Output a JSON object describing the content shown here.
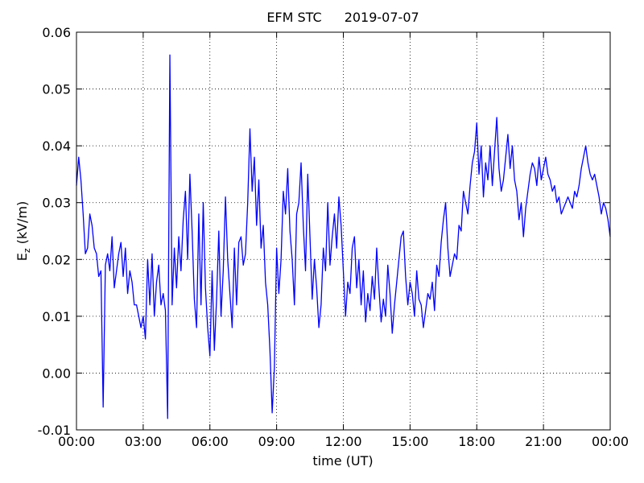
{
  "chart_data": {
    "type": "line",
    "title": "EFM STC",
    "date": "2019-07-07",
    "xlabel": "time (UT)",
    "ylabel": {
      "symbol": "E",
      "subscript": "z",
      "unit": "(kV/m)"
    },
    "xlim": [
      0,
      24
    ],
    "xticks": [
      {
        "value": 0,
        "label": "00:00"
      },
      {
        "value": 3,
        "label": "03:00"
      },
      {
        "value": 6,
        "label": "06:00"
      },
      {
        "value": 9,
        "label": "09:00"
      },
      {
        "value": 12,
        "label": "12:00"
      },
      {
        "value": 15,
        "label": "15:00"
      },
      {
        "value": 18,
        "label": "18:00"
      },
      {
        "value": 21,
        "label": "21:00"
      },
      {
        "value": 24,
        "label": "00:00"
      }
    ],
    "ylim": [
      -0.01,
      0.06
    ],
    "yticks": [
      -0.01,
      {
        "value": 0,
        "label": "0.00"
      },
      0.01,
      0.02,
      0.03,
      0.04,
      0.05,
      0.06
    ],
    "grid": true,
    "x": [
      0,
      0.1,
      0.2,
      0.3,
      0.4,
      0.5,
      0.6,
      0.7,
      0.8,
      0.9,
      1,
      1.1,
      1.2,
      1.3,
      1.4,
      1.5,
      1.6,
      1.7,
      1.8,
      1.9,
      2,
      2.1,
      2.2,
      2.3,
      2.4,
      2.5,
      2.6,
      2.7,
      2.8,
      2.9,
      3,
      3.1,
      3.2,
      3.3,
      3.4,
      3.5,
      3.6,
      3.7,
      3.8,
      3.9,
      4,
      4.1,
      4.2,
      4.3,
      4.4,
      4.5,
      4.6,
      4.7,
      4.8,
      4.9,
      5,
      5.1,
      5.2,
      5.3,
      5.4,
      5.5,
      5.6,
      5.7,
      5.8,
      5.9,
      6,
      6.1,
      6.2,
      6.3,
      6.4,
      6.5,
      6.6,
      6.7,
      6.8,
      6.9,
      7,
      7.1,
      7.2,
      7.3,
      7.4,
      7.5,
      7.6,
      7.7,
      7.8,
      7.9,
      8,
      8.1,
      8.2,
      8.3,
      8.4,
      8.5,
      8.6,
      8.7,
      8.8,
      8.9,
      9,
      9.1,
      9.2,
      9.3,
      9.4,
      9.5,
      9.6,
      9.7,
      9.8,
      9.9,
      10,
      10.1,
      10.2,
      10.3,
      10.4,
      10.5,
      10.6,
      10.7,
      10.8,
      10.9,
      11,
      11.1,
      11.2,
      11.3,
      11.4,
      11.5,
      11.6,
      11.7,
      11.8,
      11.9,
      12,
      12.1,
      12.2,
      12.3,
      12.4,
      12.5,
      12.6,
      12.7,
      12.8,
      12.9,
      13,
      13.1,
      13.2,
      13.3,
      13.4,
      13.5,
      13.6,
      13.7,
      13.8,
      13.9,
      14,
      14.1,
      14.2,
      14.3,
      14.4,
      14.5,
      14.6,
      14.7,
      14.8,
      14.9,
      15,
      15.1,
      15.2,
      15.3,
      15.4,
      15.5,
      15.6,
      15.7,
      15.8,
      15.9,
      16,
      16.1,
      16.2,
      16.3,
      16.4,
      16.5,
      16.6,
      16.7,
      16.8,
      16.9,
      17,
      17.1,
      17.2,
      17.3,
      17.4,
      17.5,
      17.6,
      17.7,
      17.8,
      17.9,
      18,
      18.1,
      18.2,
      18.3,
      18.4,
      18.5,
      18.6,
      18.7,
      18.8,
      18.9,
      19,
      19.1,
      19.2,
      19.3,
      19.4,
      19.5,
      19.6,
      19.7,
      19.8,
      19.9,
      20,
      20.1,
      20.2,
      20.3,
      20.4,
      20.5,
      20.6,
      20.7,
      20.8,
      20.9,
      21,
      21.1,
      21.2,
      21.3,
      21.4,
      21.5,
      21.6,
      21.7,
      21.8,
      21.9,
      22,
      22.1,
      22.2,
      22.3,
      22.4,
      22.5,
      22.6,
      22.7,
      22.8,
      22.9,
      23,
      23.1,
      23.2,
      23.3,
      23.4,
      23.5,
      23.6,
      23.7,
      23.8,
      23.9,
      24
    ],
    "series": [
      {
        "color": "#0000ff",
        "values": [
          0.033,
          0.038,
          0.034,
          0.028,
          0.021,
          0.022,
          0.028,
          0.026,
          0.022,
          0.021,
          0.017,
          0.018,
          -0.006,
          0.019,
          0.021,
          0.018,
          0.024,
          0.015,
          0.018,
          0.021,
          0.023,
          0.017,
          0.022,
          0.014,
          0.018,
          0.016,
          0.012,
          0.012,
          0.01,
          0.008,
          0.01,
          0.006,
          0.02,
          0.012,
          0.021,
          0.01,
          0.016,
          0.019,
          0.012,
          0.014,
          0.011,
          -0.008,
          0.056,
          0.012,
          0.022,
          0.015,
          0.024,
          0.018,
          0.027,
          0.032,
          0.02,
          0.035,
          0.025,
          0.013,
          0.008,
          0.028,
          0.012,
          0.03,
          0.015,
          0.008,
          0.003,
          0.018,
          0.004,
          0.013,
          0.025,
          0.01,
          0.018,
          0.031,
          0.02,
          0.014,
          0.008,
          0.022,
          0.012,
          0.023,
          0.024,
          0.019,
          0.021,
          0.03,
          0.043,
          0.032,
          0.038,
          0.026,
          0.034,
          0.022,
          0.026,
          0.016,
          0.012,
          0.004,
          -0.007,
          0.001,
          0.022,
          0.014,
          0.02,
          0.032,
          0.028,
          0.036,
          0.025,
          0.02,
          0.012,
          0.028,
          0.03,
          0.037,
          0.026,
          0.018,
          0.035,
          0.024,
          0.013,
          0.02,
          0.015,
          0.008,
          0.012,
          0.022,
          0.018,
          0.03,
          0.019,
          0.024,
          0.028,
          0.022,
          0.031,
          0.026,
          0.018,
          0.01,
          0.016,
          0.014,
          0.022,
          0.024,
          0.015,
          0.02,
          0.012,
          0.018,
          0.009,
          0.014,
          0.011,
          0.017,
          0.013,
          0.022,
          0.015,
          0.009,
          0.013,
          0.01,
          0.019,
          0.014,
          0.007,
          0.012,
          0.016,
          0.02,
          0.024,
          0.025,
          0.017,
          0.012,
          0.016,
          0.014,
          0.01,
          0.018,
          0.013,
          0.012,
          0.008,
          0.011,
          0.014,
          0.013,
          0.016,
          0.011,
          0.019,
          0.017,
          0.023,
          0.027,
          0.03,
          0.022,
          0.017,
          0.019,
          0.021,
          0.02,
          0.026,
          0.025,
          0.032,
          0.03,
          0.028,
          0.033,
          0.037,
          0.039,
          0.044,
          0.035,
          0.04,
          0.031,
          0.037,
          0.034,
          0.04,
          0.033,
          0.039,
          0.045,
          0.036,
          0.032,
          0.034,
          0.038,
          0.042,
          0.036,
          0.04,
          0.034,
          0.032,
          0.027,
          0.03,
          0.024,
          0.029,
          0.032,
          0.035,
          0.037,
          0.036,
          0.033,
          0.038,
          0.034,
          0.036,
          0.038,
          0.035,
          0.034,
          0.032,
          0.033,
          0.03,
          0.031,
          0.028,
          0.029,
          0.03,
          0.031,
          0.03,
          0.029,
          0.032,
          0.031,
          0.033,
          0.036,
          0.038,
          0.04,
          0.037,
          0.035,
          0.034,
          0.035,
          0.033,
          0.031,
          0.028,
          0.03,
          0.029,
          0.027,
          0.024
        ]
      }
    ]
  }
}
